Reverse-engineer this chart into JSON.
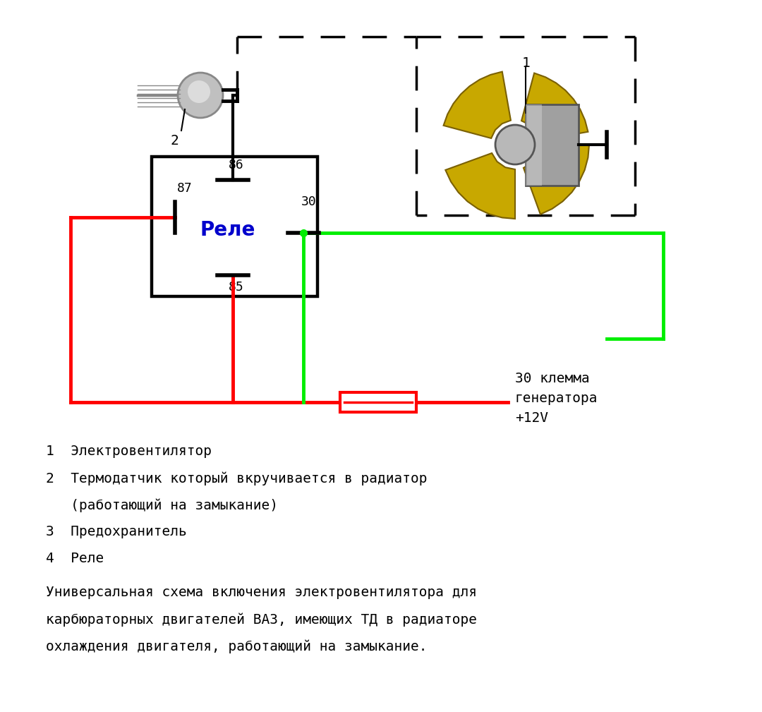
{
  "bg_color": "#ffffff",
  "relay_label": "Реле",
  "relay_label_color": "#0000cc",
  "label_30_klema": "30 клемма\nгенератора\n+12V",
  "legend_lines": [
    "1  Электровентилятор",
    "2  Термодатчик который вкручивается в радиатор",
    "   (работающий на замыкание)",
    "3  Предохранитель",
    "4  Реле"
  ],
  "desc_lines": [
    "Универсальная схема включения электровентилятора для",
    "карбюраторных двигателей ВАЗ, имеющих ТД в радиаторе",
    "охлаждения двигателя, работающий на замыкание."
  ],
  "RED": "#ff0000",
  "GREEN": "#00ee00",
  "BLACK": "#000000",
  "WHITE": "#ffffff",
  "fan_blade": "#c8a800",
  "fan_outline": "#7a6000",
  "motor_face": "#a0a0a0",
  "motor_edge": "#555555",
  "sensor_body": "#c0c0c0",
  "sensor_thread": "#888888"
}
